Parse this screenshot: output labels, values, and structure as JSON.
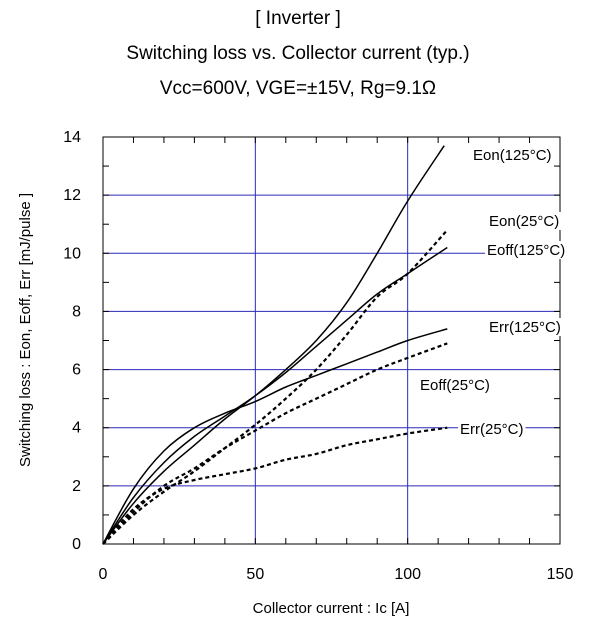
{
  "chart_data": {
    "type": "line",
    "title": "[ Inverter ]",
    "subtitle": "Switching loss  vs.  Collector current  (typ.)",
    "conditions": "Vcc=600V, VGE=±15V, Rg=9.1Ω",
    "xlabel": "Collector current : Ic [A]",
    "ylabel": "Switching loss  : Eon, Eoff, Err  [mJ/pulse ]",
    "xlim": [
      0,
      150
    ],
    "ylim": [
      0,
      14
    ],
    "xticks": [
      "0",
      "50",
      "100",
      "150"
    ],
    "yticks": [
      "0",
      "2",
      "4",
      "6",
      "8",
      "10",
      "12",
      "14"
    ],
    "grid": true,
    "grid_color": "#2a2ab8",
    "line_color": "#000000",
    "series": [
      {
        "name": "Eon(125°C)",
        "style": "solid",
        "x": [
          0,
          10,
          20,
          30,
          40,
          50,
          60,
          70,
          80,
          90,
          100,
          112
        ],
        "y": [
          0,
          1.4,
          2.5,
          3.4,
          4.3,
          5.1,
          6.0,
          7.0,
          8.3,
          10.0,
          11.8,
          13.7
        ]
      },
      {
        "name": "Eon(25°C)",
        "style": "dashed",
        "x": [
          0,
          10,
          20,
          30,
          40,
          50,
          60,
          70,
          80,
          90,
          100,
          113
        ],
        "y": [
          0,
          1.0,
          1.8,
          2.5,
          3.3,
          4.1,
          5.0,
          6.0,
          7.2,
          8.5,
          9.3,
          10.8
        ]
      },
      {
        "name": "Eoff(125°C)",
        "style": "solid",
        "x": [
          0,
          10,
          20,
          30,
          40,
          50,
          60,
          70,
          80,
          90,
          100,
          113
        ],
        "y": [
          0,
          1.6,
          2.8,
          3.7,
          4.4,
          5.1,
          5.9,
          6.8,
          7.7,
          8.6,
          9.3,
          10.2
        ]
      },
      {
        "name": "Err(125°C)",
        "style": "solid",
        "x": [
          0,
          10,
          20,
          30,
          40,
          50,
          60,
          70,
          80,
          90,
          100,
          113
        ],
        "y": [
          0,
          1.9,
          3.2,
          4.0,
          4.5,
          4.9,
          5.4,
          5.8,
          6.2,
          6.6,
          7.0,
          7.4
        ]
      },
      {
        "name": "Eoff(25°C)",
        "style": "dashed",
        "x": [
          0,
          10,
          20,
          30,
          40,
          50,
          60,
          70,
          80,
          90,
          100,
          113
        ],
        "y": [
          0,
          1.1,
          2.0,
          2.6,
          3.3,
          3.9,
          4.5,
          5.0,
          5.5,
          6.0,
          6.4,
          6.9
        ]
      },
      {
        "name": "Err(25°C)",
        "style": "dashed",
        "x": [
          0,
          10,
          20,
          30,
          40,
          50,
          60,
          70,
          80,
          90,
          100,
          113
        ],
        "y": [
          0,
          1.2,
          1.9,
          2.2,
          2.4,
          2.6,
          2.9,
          3.1,
          3.4,
          3.6,
          3.8,
          4.0
        ]
      }
    ]
  }
}
